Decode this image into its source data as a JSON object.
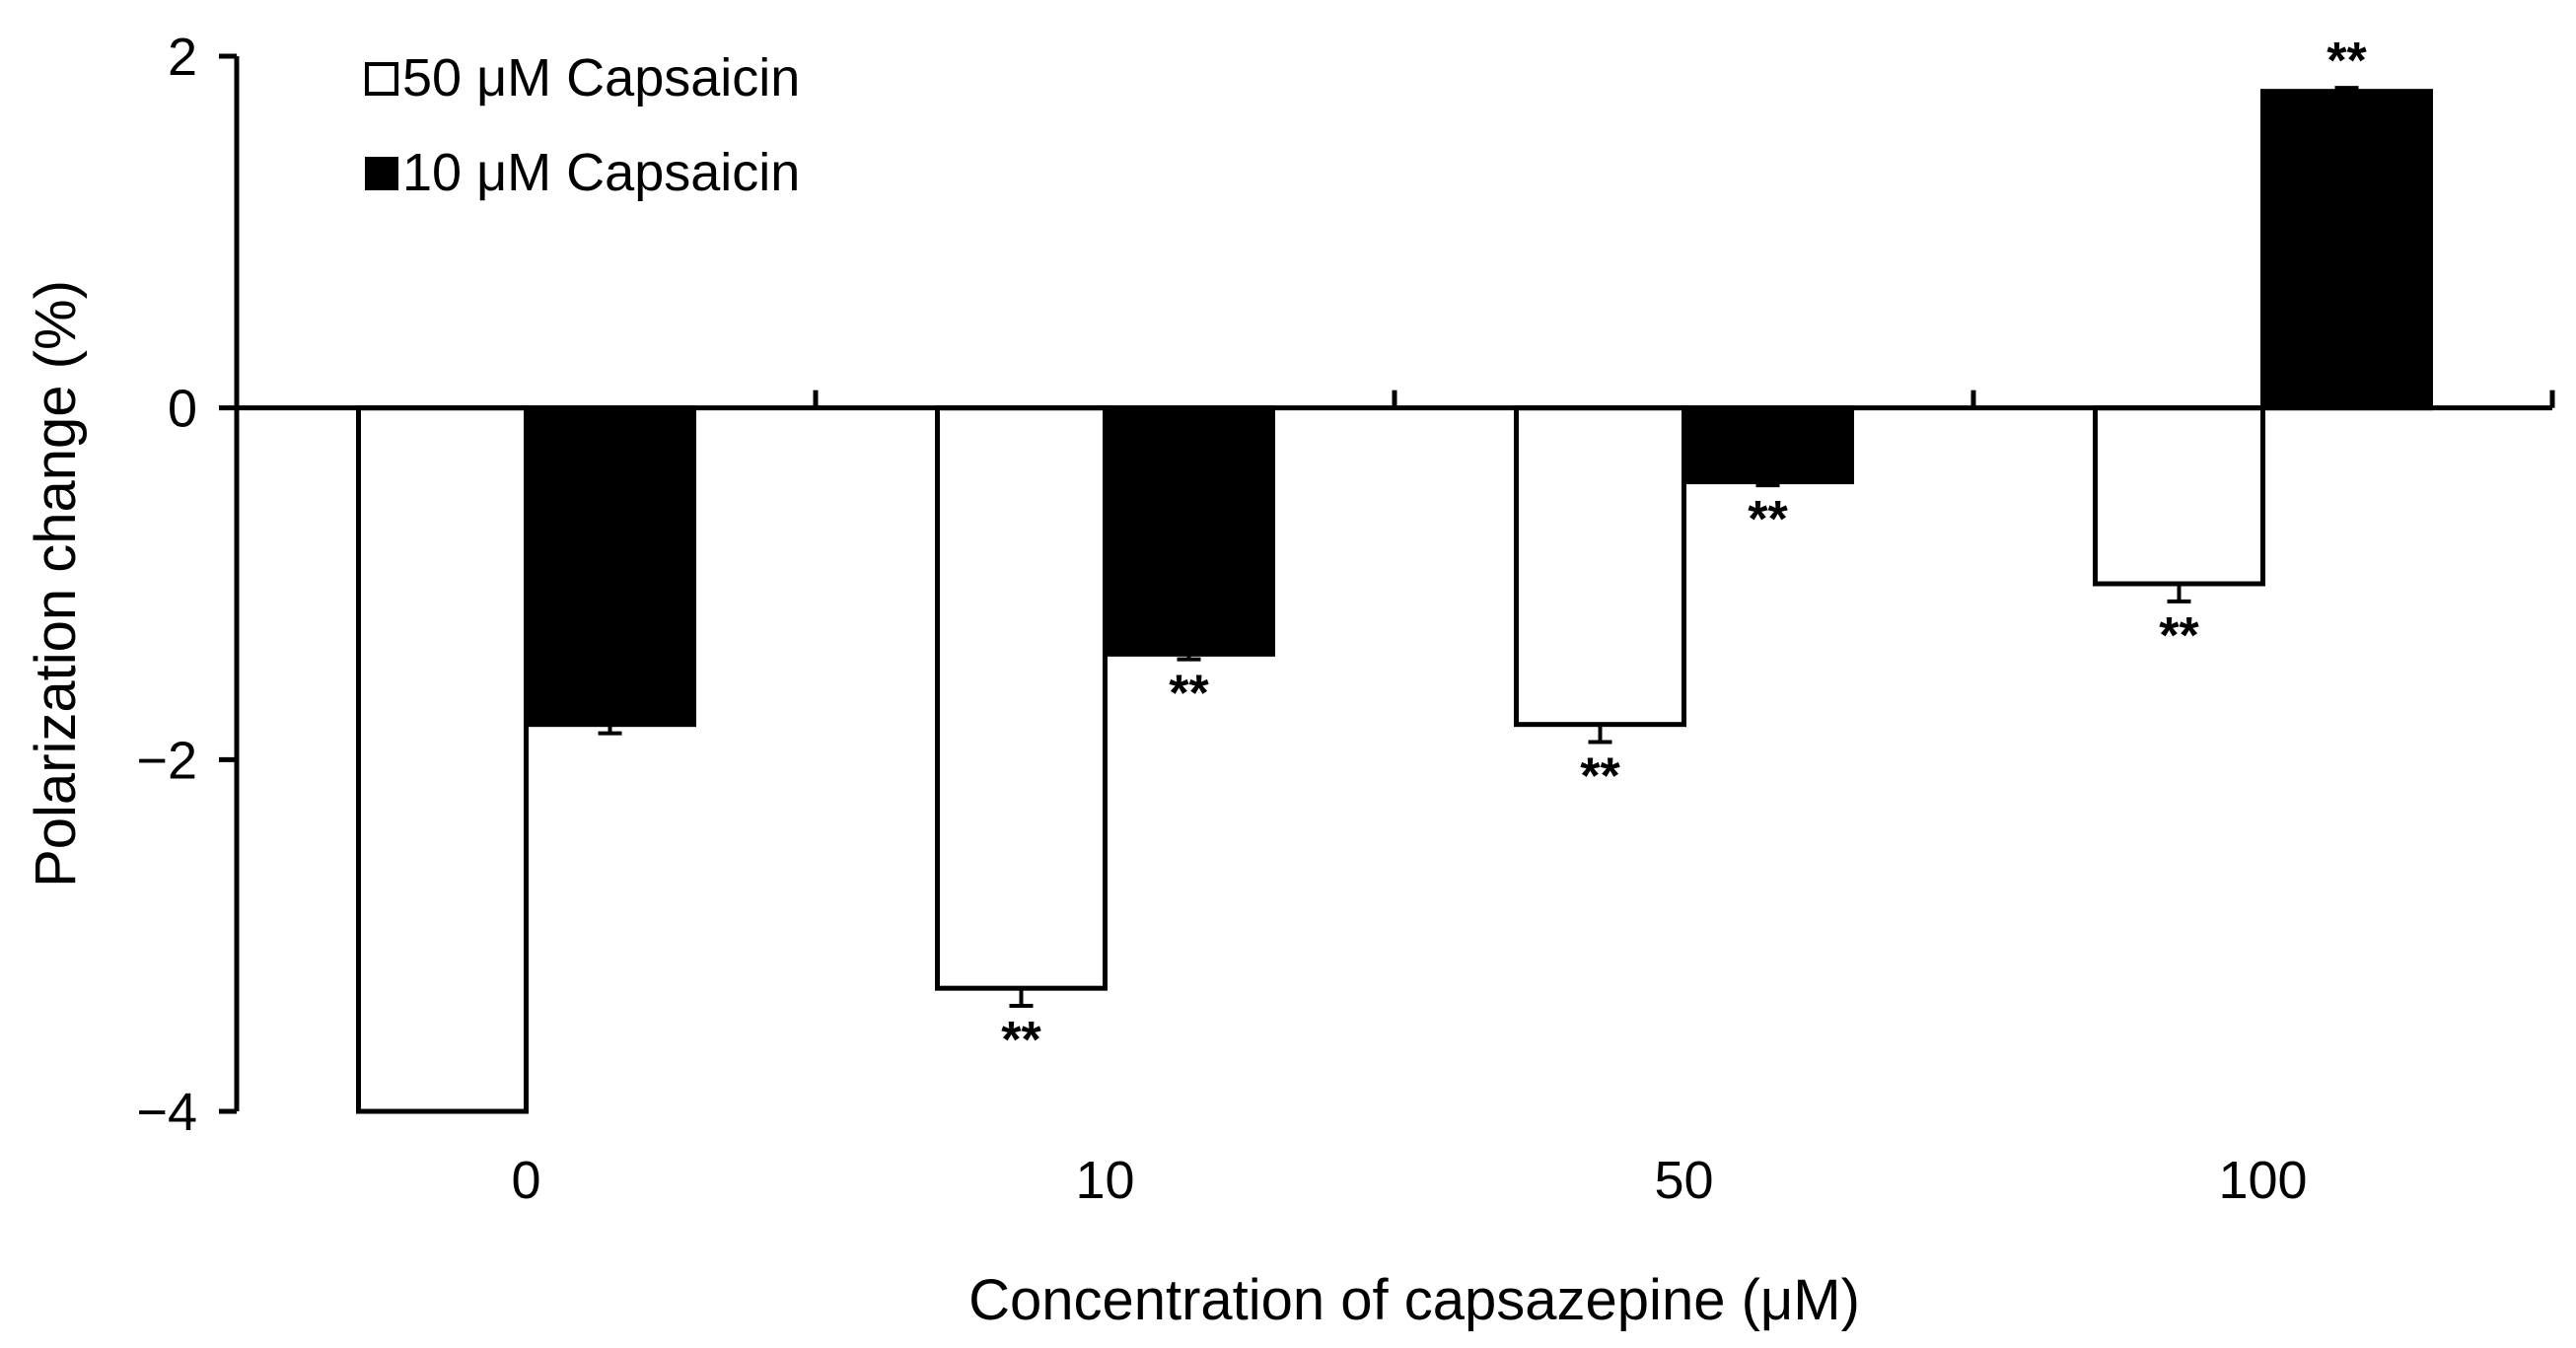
{
  "chart_data": {
    "type": "bar",
    "xlabel": "Concentration of capsazepine (μM)",
    "ylabel": "Polarization change (%)",
    "ylim": [
      -4,
      2
    ],
    "yticks": [
      -4,
      -2,
      0,
      2
    ],
    "ytick_labels": [
      "−4",
      "−2",
      "0",
      "2"
    ],
    "categories": [
      "0",
      "10",
      "50",
      "100"
    ],
    "series": [
      {
        "name": "50 μM Capsaicin",
        "fill": "#ffffff",
        "values": [
          -4.0,
          -3.3,
          -1.8,
          -1.0
        ],
        "errors": [
          0.0,
          0.1,
          0.1,
          0.1
        ],
        "significance": [
          "",
          "**",
          "**",
          "**"
        ]
      },
      {
        "name": "10 μM Capsaicin",
        "fill": "#000000",
        "values": [
          -1.8,
          -1.4,
          -0.42,
          1.8
        ],
        "errors": [
          0.05,
          0.03,
          0.02,
          0.02
        ],
        "significance": [
          "",
          "**",
          "**",
          "**"
        ]
      }
    ],
    "legend_position": "top-left",
    "grid": false
  },
  "colors": {
    "axis": "#000000",
    "bar_outline": "#000000"
  }
}
